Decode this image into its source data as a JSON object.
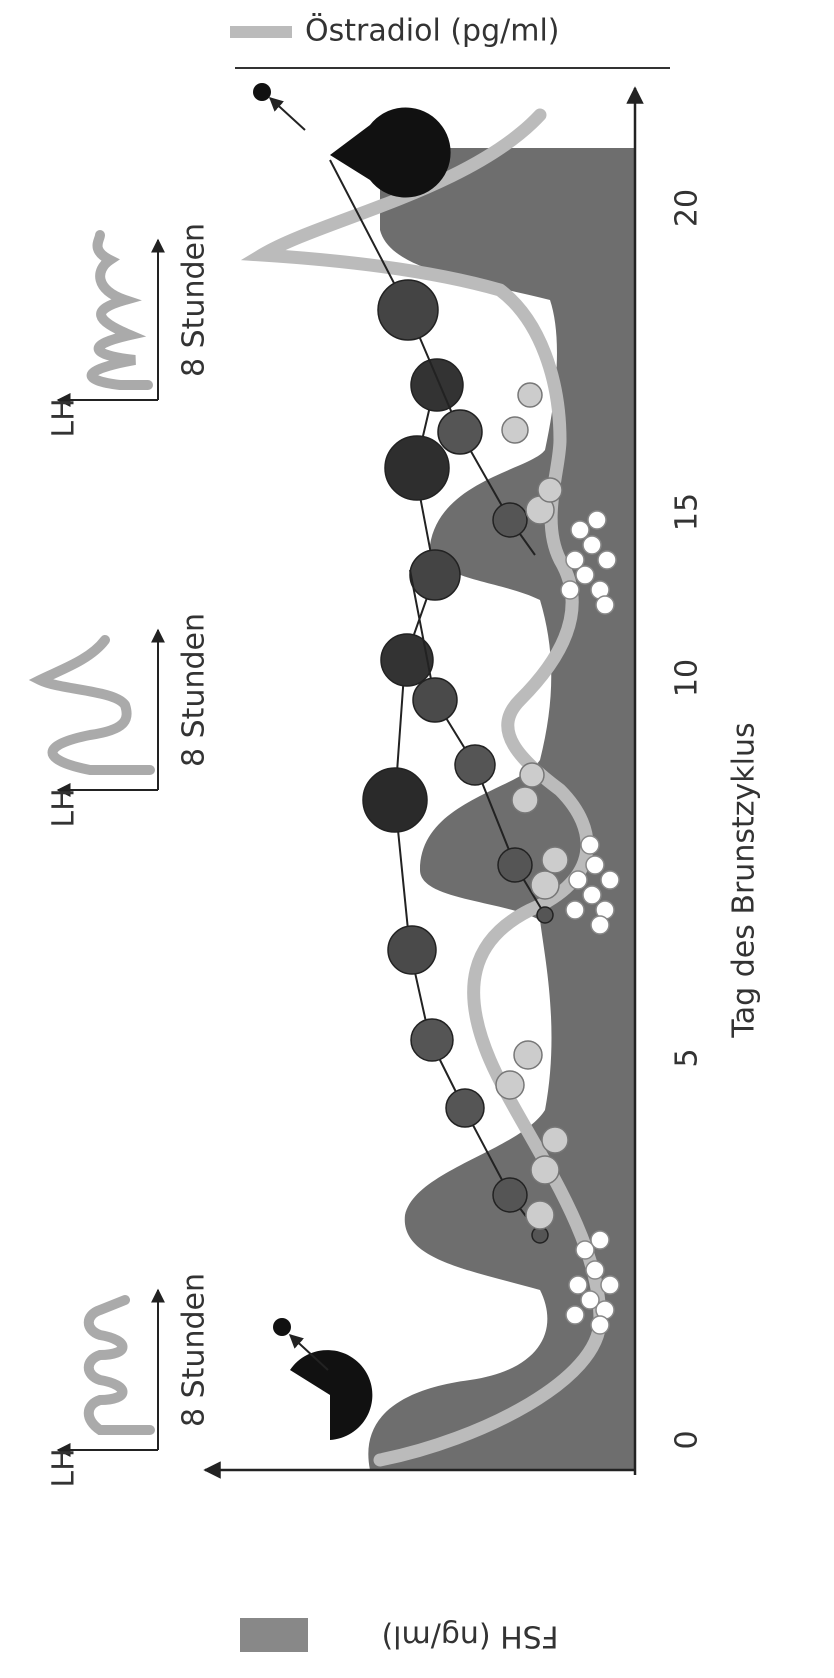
{
  "legend": {
    "estradiol": "Östradiol (pg/ml)",
    "fsh": "FSH (ng/ml)"
  },
  "x_axis": {
    "label": "Tag des Brunstzyklus",
    "ticks": [
      0,
      5,
      10,
      15,
      20
    ]
  },
  "insets": [
    {
      "y_label": "LH",
      "x_label": "8 Stunden"
    },
    {
      "y_label": "LH",
      "x_label": "8 Stunden"
    },
    {
      "y_label": "LH",
      "x_label": "8 Stunden"
    }
  ]
}
